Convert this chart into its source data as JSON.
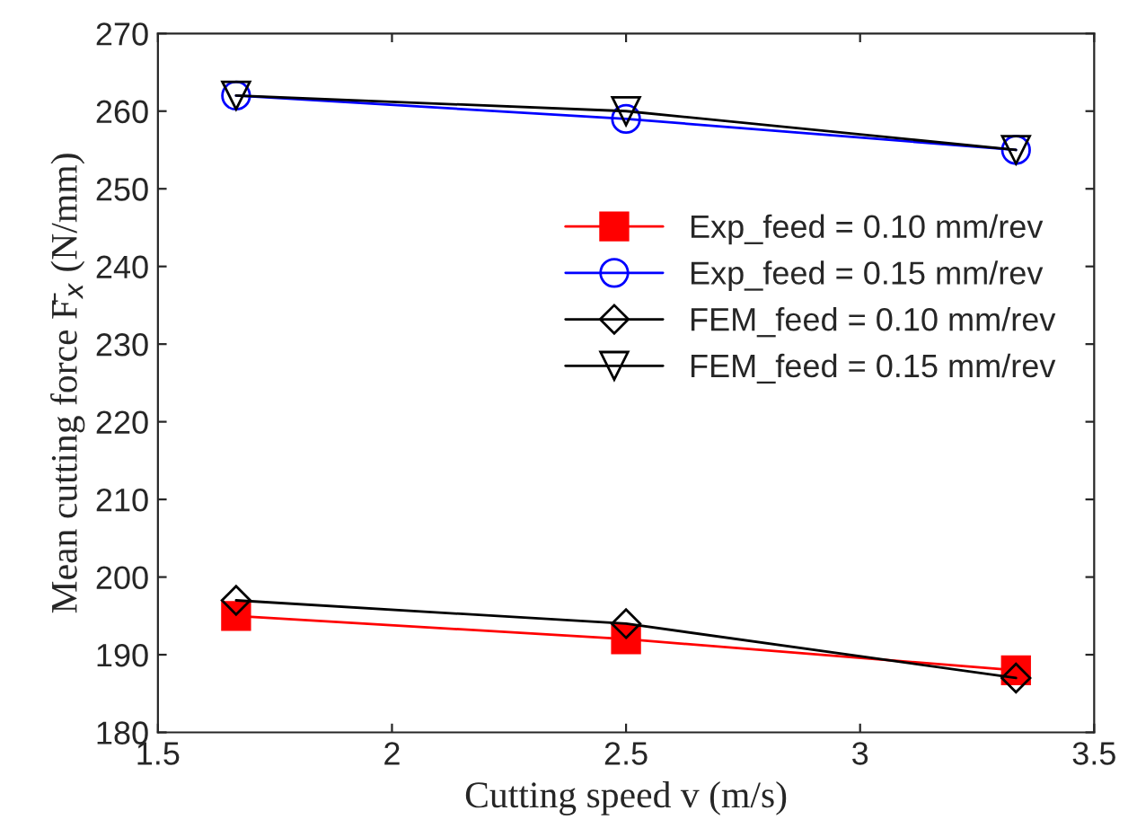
{
  "chart_data": {
    "type": "line",
    "xlabel": "Cutting speed v (m/s)",
    "ylabel": "Mean cutting force F̄$_{x}$ (N/mm)",
    "x": [
      1.667,
      2.5,
      3.333
    ],
    "series": [
      {
        "name": "Exp_feed = 0.10 mm/rev",
        "color": "#ff0000",
        "marker": "square",
        "values": [
          195,
          192,
          188
        ]
      },
      {
        "name": "Exp_feed = 0.15 mm/rev",
        "color": "#0000ff",
        "marker": "circle",
        "values": [
          262,
          259,
          255
        ]
      },
      {
        "name": "FEM_feed = 0.10 mm/rev",
        "color": "#000000",
        "marker": "diamond",
        "values": [
          197,
          194,
          187
        ]
      },
      {
        "name": "FEM_feed = 0.15 mm/rev",
        "color": "#000000",
        "marker": "triangle",
        "values": [
          262,
          260,
          255
        ]
      }
    ],
    "xlim": [
      1.5,
      3.5
    ],
    "xticks": [
      1.5,
      2,
      2.5,
      3,
      3.5
    ],
    "ylim": [
      180,
      270
    ],
    "yticks": [
      180,
      190,
      200,
      210,
      220,
      230,
      240,
      250,
      260,
      270
    ],
    "grid": false,
    "legend": "right",
    "line_style": "solid"
  }
}
